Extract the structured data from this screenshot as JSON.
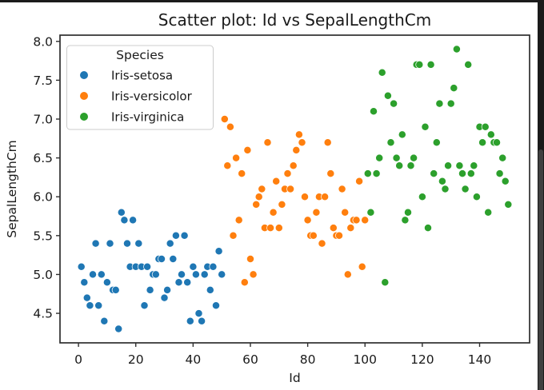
{
  "window": {
    "edge_color": "#1b1b1b",
    "scrollbar": {
      "track_color": "#1a1a1a",
      "thumb_color": "#3f3f3f"
    }
  },
  "chart_data": {
    "type": "scatter",
    "title": "Scatter plot: Id vs SepalLengthCm",
    "xlabel": "Id",
    "ylabel": "SepalLengthCm",
    "xlim": [
      -6.45,
      157.45
    ],
    "ylim": [
      4.12,
      8.08
    ],
    "xticks": [
      0,
      20,
      40,
      60,
      80,
      100,
      120,
      140
    ],
    "yticks": [
      4.5,
      5.0,
      5.5,
      6.0,
      6.5,
      7.0,
      7.5,
      8.0
    ],
    "grid": false,
    "background": "#ffffff",
    "text_color": "#1a1a1a",
    "spine_color": "#2e2e2e",
    "marker": {
      "radius": 4.6,
      "edge_color": "#ffffff"
    },
    "legend": {
      "title": "Species",
      "position": "upper left"
    },
    "series": [
      {
        "name": "Iris-setosa",
        "color": "#1f77b4",
        "x": [
          1,
          2,
          3,
          4,
          5,
          6,
          7,
          8,
          9,
          10,
          11,
          12,
          13,
          14,
          15,
          16,
          17,
          18,
          19,
          20,
          21,
          22,
          23,
          24,
          25,
          26,
          27,
          28,
          29,
          30,
          31,
          32,
          33,
          34,
          35,
          36,
          37,
          38,
          39,
          40,
          41,
          42,
          43,
          44,
          45,
          46,
          47,
          48,
          49,
          50
        ],
        "y": [
          5.1,
          4.9,
          4.7,
          4.6,
          5.0,
          5.4,
          4.6,
          5.0,
          4.4,
          4.9,
          5.4,
          4.8,
          4.8,
          4.3,
          5.8,
          5.7,
          5.4,
          5.1,
          5.7,
          5.1,
          5.4,
          5.1,
          4.6,
          5.1,
          4.8,
          5.0,
          5.0,
          5.2,
          5.2,
          4.7,
          4.8,
          5.4,
          5.2,
          5.5,
          4.9,
          5.0,
          5.5,
          4.9,
          4.4,
          5.1,
          5.0,
          4.5,
          4.4,
          5.0,
          5.1,
          4.8,
          5.1,
          4.6,
          5.3,
          5.0
        ]
      },
      {
        "name": "Iris-versicolor",
        "color": "#ff7f0e",
        "x": [
          51,
          52,
          53,
          54,
          55,
          56,
          57,
          58,
          59,
          60,
          61,
          62,
          63,
          64,
          65,
          66,
          67,
          68,
          69,
          70,
          71,
          72,
          73,
          74,
          75,
          76,
          77,
          78,
          79,
          80,
          81,
          82,
          83,
          84,
          85,
          86,
          87,
          88,
          89,
          90,
          91,
          92,
          93,
          94,
          95,
          96,
          97,
          98,
          99,
          100
        ],
        "y": [
          7.0,
          6.4,
          6.9,
          5.5,
          6.5,
          5.7,
          6.3,
          4.9,
          6.6,
          5.2,
          5.0,
          5.9,
          6.0,
          6.1,
          5.6,
          6.7,
          5.6,
          5.8,
          6.2,
          5.6,
          5.9,
          6.1,
          6.3,
          6.1,
          6.4,
          6.6,
          6.8,
          6.7,
          6.0,
          5.7,
          5.5,
          5.5,
          5.8,
          6.0,
          5.4,
          6.0,
          6.7,
          6.3,
          5.6,
          5.5,
          5.5,
          6.1,
          5.8,
          5.0,
          5.6,
          5.7,
          5.7,
          6.2,
          5.1,
          5.7
        ]
      },
      {
        "name": "Iris-virginica",
        "color": "#2ca02c",
        "x": [
          101,
          102,
          103,
          104,
          105,
          106,
          107,
          108,
          109,
          110,
          111,
          112,
          113,
          114,
          115,
          116,
          117,
          118,
          119,
          120,
          121,
          122,
          123,
          124,
          125,
          126,
          127,
          128,
          129,
          130,
          131,
          132,
          133,
          134,
          135,
          136,
          137,
          138,
          139,
          140,
          141,
          142,
          143,
          144,
          145,
          146,
          147,
          148,
          149,
          150
        ],
        "y": [
          6.3,
          5.8,
          7.1,
          6.3,
          6.5,
          7.6,
          4.9,
          7.3,
          6.7,
          7.2,
          6.5,
          6.4,
          6.8,
          5.7,
          5.8,
          6.4,
          6.5,
          7.7,
          7.7,
          6.0,
          6.9,
          5.6,
          7.7,
          6.3,
          6.7,
          7.2,
          6.2,
          6.1,
          6.4,
          7.2,
          7.4,
          7.9,
          6.4,
          6.3,
          6.1,
          7.7,
          6.3,
          6.4,
          6.0,
          6.9,
          6.7,
          6.9,
          5.8,
          6.8,
          6.7,
          6.7,
          6.3,
          6.5,
          6.2,
          5.9
        ]
      }
    ]
  }
}
